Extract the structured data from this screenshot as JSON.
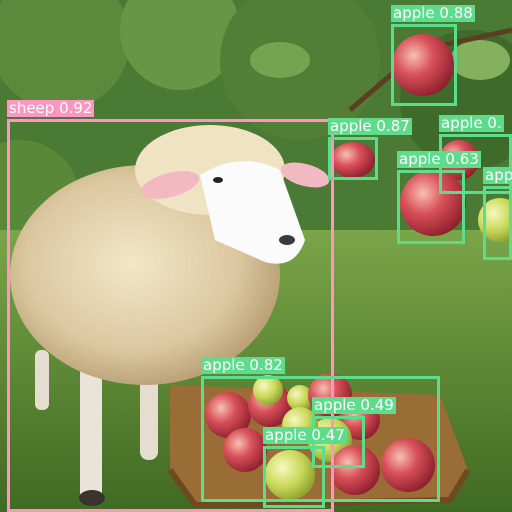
{
  "image": {
    "subject": "sheep beside a woven basket of apples under an apple tree",
    "background_color": "#3f6a2c"
  },
  "colors": {
    "sheep_box": "#ff96c0",
    "apple_box": "#5ddc8c",
    "label_text": "#ffffff"
  },
  "detections": [
    {
      "label": "sheep 0.92",
      "class": "sheep",
      "confidence": 0.92
    },
    {
      "label": "apple 0.88",
      "class": "apple",
      "confidence": 0.88
    },
    {
      "label": "apple 0.87",
      "class": "apple",
      "confidence": 0.87
    },
    {
      "label": "apple 0.",
      "class": "apple"
    },
    {
      "label": "apple 0.63",
      "class": "apple",
      "confidence": 0.63
    },
    {
      "label": "app",
      "class": "apple"
    },
    {
      "label": "apple 0.82",
      "class": "apple",
      "confidence": 0.82
    },
    {
      "label": "apple 0.49",
      "class": "apple",
      "confidence": 0.49
    },
    {
      "label": "apple 0.47",
      "class": "apple",
      "confidence": 0.47
    }
  ]
}
